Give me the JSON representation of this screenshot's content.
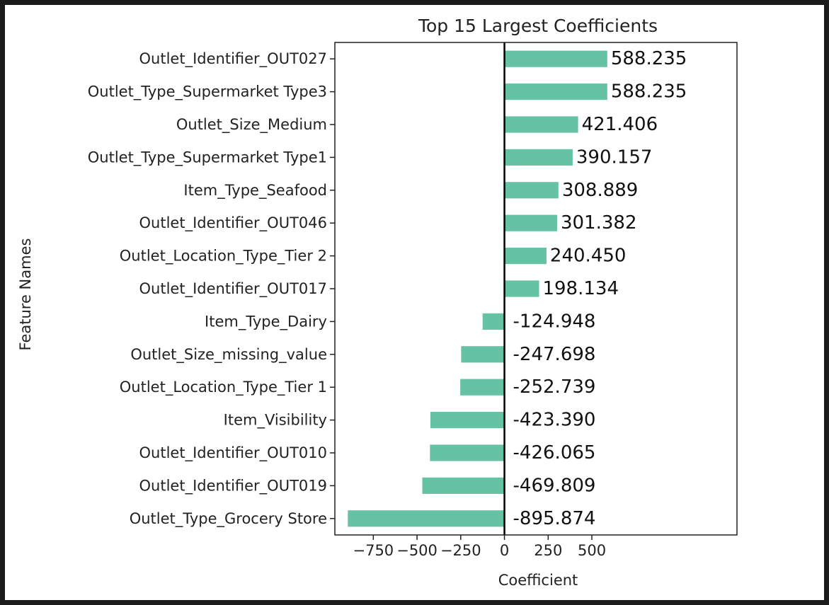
{
  "chart_data": {
    "type": "bar",
    "orientation": "horizontal",
    "title": "Top 15 Largest Coefficients",
    "xlabel": "Coefficient",
    "ylabel": "Feature Names",
    "xlim": [
      -970,
      1330
    ],
    "xticks": [
      -750,
      -500,
      -250,
      0,
      250,
      500
    ],
    "xtick_labels": [
      "−750",
      "−500",
      "−250",
      "0",
      "250",
      "500"
    ],
    "grid": false,
    "bar_color": "#66c2a5",
    "zero_line_color": "#000000",
    "categories": [
      "Outlet_Identifier_OUT027",
      "Outlet_Type_Supermarket Type3",
      "Outlet_Size_Medium",
      "Outlet_Type_Supermarket Type1",
      "Item_Type_Seafood",
      "Outlet_Identifier_OUT046",
      "Outlet_Location_Type_Tier 2",
      "Outlet_Identifier_OUT017",
      "Item_Type_Dairy",
      "Outlet_Size_missing_value",
      "Outlet_Location_Type_Tier 1",
      "Item_Visibility",
      "Outlet_Identifier_OUT010",
      "Outlet_Identifier_OUT019",
      "Outlet_Type_Grocery Store"
    ],
    "values": [
      588.235,
      588.235,
      421.406,
      390.157,
      308.889,
      301.382,
      240.45,
      198.134,
      -124.948,
      -247.698,
      -252.739,
      -423.39,
      -426.065,
      -469.809,
      -895.874
    ],
    "value_labels": [
      "588.235",
      "588.235",
      "421.406",
      "390.157",
      "308.889",
      "301.382",
      "240.450",
      "198.134",
      "-124.948",
      "-247.698",
      "-252.739",
      "-423.390",
      "-426.065",
      "-469.809",
      "-895.874"
    ]
  }
}
